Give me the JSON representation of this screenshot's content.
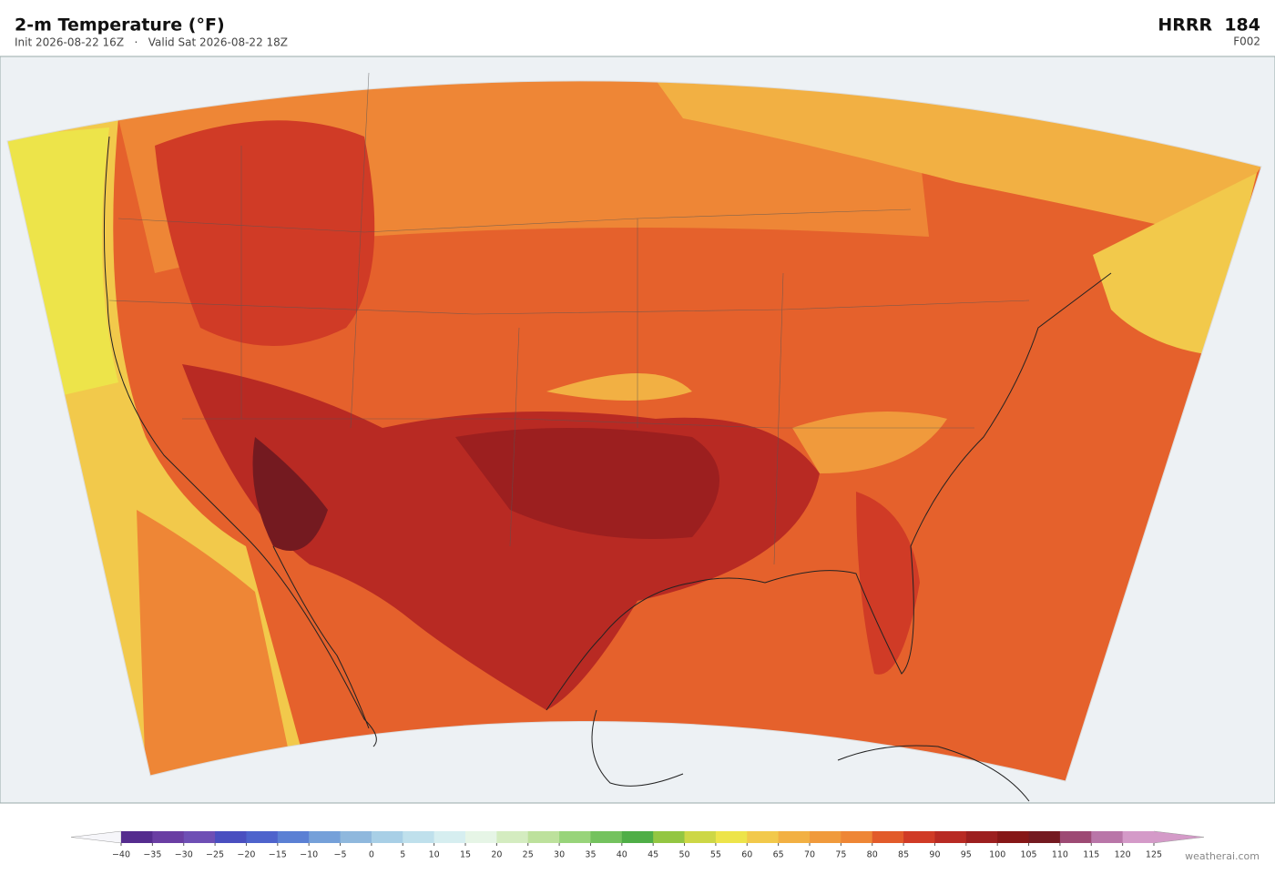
{
  "header": {
    "title": "2-m Temperature  (°F)",
    "subtitle": "Init 2026-08-22 16Z   ·   Valid Sat 2026-08-22 18Z",
    "model": "HRRR  184",
    "forecast_hour": "F002"
  },
  "colorbar": {
    "ticks": [
      {
        "value": -40,
        "label": "−40"
      },
      {
        "value": -35,
        "label": "−35"
      },
      {
        "value": -30,
        "label": "−30"
      },
      {
        "value": -25,
        "label": "−25"
      },
      {
        "value": -20,
        "label": "−20"
      },
      {
        "value": -15,
        "label": "−15"
      },
      {
        "value": -10,
        "label": "−10"
      },
      {
        "value": -5,
        "label": "−5"
      },
      0,
      5,
      10,
      15,
      20,
      25,
      30,
      35,
      40,
      45,
      50,
      55,
      60,
      65,
      70,
      75,
      80,
      85,
      90,
      95,
      100,
      105,
      110,
      115,
      120,
      125
    ],
    "colors": [
      "#552c8e",
      "#6a3ea3",
      "#6e4fb5",
      "#4a4fc0",
      "#4e63cc",
      "#5b80d4",
      "#75a0d9",
      "#8fb8dd",
      "#a8cfe6",
      "#bfe0ec",
      "#d6eef0",
      "#e6f5e6",
      "#d4ecc0",
      "#bde19c",
      "#98d47a",
      "#74c25e",
      "#4fae47",
      "#93c642",
      "#cdd746",
      "#ede44a",
      "#f2c94b",
      "#f2b043",
      "#f09a3c",
      "#ee8636",
      "#e25b2a",
      "#d03b26",
      "#b82a23",
      "#9c1f1f",
      "#861717",
      "#741a20",
      "#9d4a74",
      "#b976a8",
      "#d49ac8"
    ],
    "under_color": "#f6f6fa",
    "over_color": "#d49ac8"
  },
  "footer": {
    "credit": "weatherai.com"
  }
}
